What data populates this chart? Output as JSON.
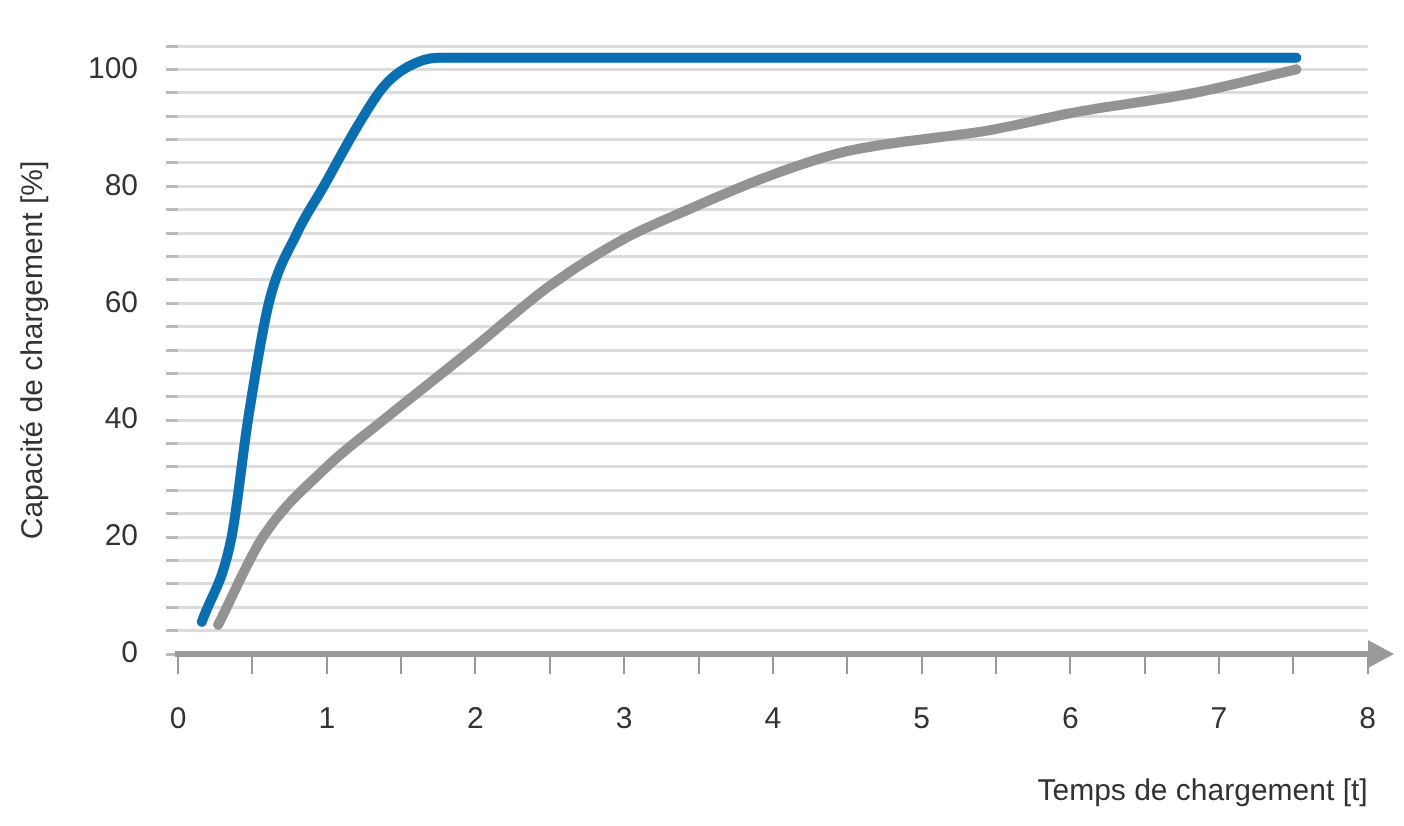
{
  "chart_data": {
    "type": "line",
    "xlabel": "Temps de chargement [t]",
    "ylabel": "Capacité de chargement [%]",
    "xlim": [
      0,
      8
    ],
    "ylim": [
      0,
      104
    ],
    "xticks": [
      0,
      {
        "value": 0.5,
        "label": null
      },
      1,
      {
        "value": 1.5,
        "label": null
      },
      2,
      {
        "value": 2.5,
        "label": null
      },
      3,
      {
        "value": 3.5,
        "label": null
      },
      4,
      {
        "value": 4.5,
        "label": null
      },
      5,
      {
        "value": 5.5,
        "label": null
      },
      6,
      {
        "value": 6.5,
        "label": null
      },
      7,
      {
        "value": 7.5,
        "label": null
      },
      8
    ],
    "yticks": [
      0,
      {
        "value": 4,
        "label": null
      },
      {
        "value": 8,
        "label": null
      },
      {
        "value": 12,
        "label": null
      },
      {
        "value": 16,
        "label": null
      },
      20,
      {
        "value": 24,
        "label": null
      },
      {
        "value": 28,
        "label": null
      },
      {
        "value": 32,
        "label": null
      },
      {
        "value": 36,
        "label": null
      },
      40,
      {
        "value": 44,
        "label": null
      },
      {
        "value": 48,
        "label": null
      },
      {
        "value": 52,
        "label": null
      },
      {
        "value": 56,
        "label": null
      },
      60,
      {
        "value": 64,
        "label": null
      },
      {
        "value": 68,
        "label": null
      },
      {
        "value": 72,
        "label": null
      },
      {
        "value": 76,
        "label": null
      },
      80,
      {
        "value": 84,
        "label": null
      },
      {
        "value": 88,
        "label": null
      },
      {
        "value": 92,
        "label": null
      },
      {
        "value": 96,
        "label": null
      },
      100,
      {
        "value": 104,
        "label": null
      }
    ],
    "grid": "y",
    "marker": "none",
    "line_style": "solid",
    "series": [
      {
        "color": "#0a6fb0",
        "x": [
          0.16,
          0.36,
          0.47,
          0.61,
          0.8,
          0.98,
          1.2,
          1.38,
          1.55,
          1.75,
          3,
          5,
          7.52
        ],
        "values": [
          5.5,
          20,
          40,
          60,
          72,
          80,
          90,
          97,
          100.5,
          102,
          102,
          102,
          102
        ]
      },
      {
        "color": "#939393",
        "x": [
          0.27,
          0.57,
          1,
          1.38,
          2,
          2.5,
          3,
          3.43,
          4,
          4.5,
          5.48,
          6,
          6.84,
          7.52
        ],
        "values": [
          5,
          20,
          32,
          40,
          52.6,
          63,
          71,
          76,
          82,
          86,
          89.7,
          92.5,
          96,
          100
        ]
      }
    ]
  }
}
